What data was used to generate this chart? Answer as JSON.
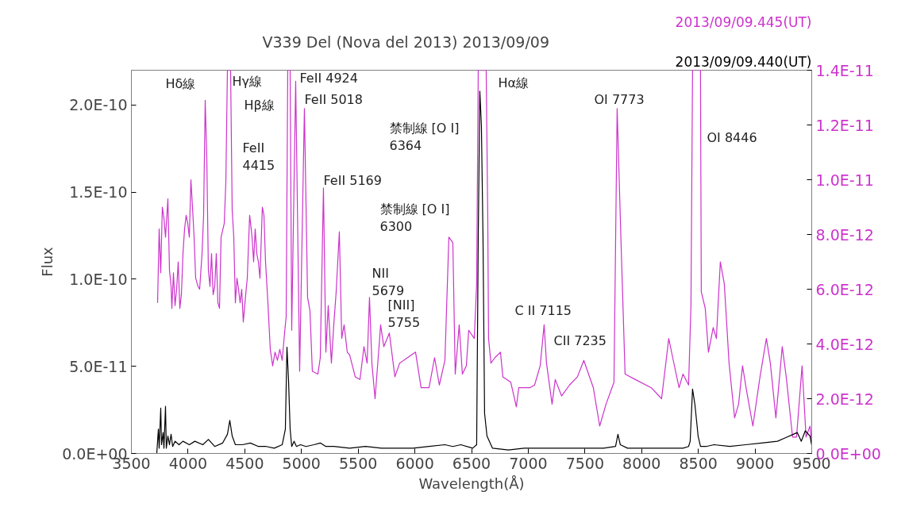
{
  "chart_data": {
    "type": "line",
    "title": "V339 Del (Nova del 2013)    2013/09/09",
    "xlabel": "Wavelength(Å)",
    "ylabel": "Flux",
    "xlim": [
      3500,
      9500
    ],
    "xticks": [
      3500,
      4000,
      4500,
      5000,
      5500,
      6000,
      6500,
      7000,
      7500,
      8000,
      8500,
      9000,
      9500
    ],
    "ylim": [
      0,
      2.2e-10
    ],
    "yticks": [
      {
        "value": 0,
        "label": "0.0E+00"
      },
      {
        "value": 5e-11,
        "label": "5.0E-11"
      },
      {
        "value": 1e-10,
        "label": "1.0E-10"
      },
      {
        "value": 1.5e-10,
        "label": "1.5E-10"
      },
      {
        "value": 2e-10,
        "label": "2.0E-10"
      }
    ],
    "y2lim": [
      0,
      1.4e-11
    ],
    "y2ticks": [
      {
        "value": 0,
        "label": "0.0E+00"
      },
      {
        "value": 2e-12,
        "label": "2.0E-12"
      },
      {
        "value": 4e-12,
        "label": "4.0E-12"
      },
      {
        "value": 6e-12,
        "label": "6.0E-12"
      },
      {
        "value": 8e-12,
        "label": "8.0E-12"
      },
      {
        "value": 1e-11,
        "label": "1.0E-11"
      },
      {
        "value": 1.2e-11,
        "label": "1.2E-11"
      },
      {
        "value": 1.4e-11,
        "label": "1.4E-11"
      }
    ],
    "grid": false,
    "marker": "none",
    "line_style": "solid",
    "series": [
      {
        "name": "2013/09/09.445(UT)",
        "color": "#cc33cc",
        "axis": "y2",
        "x": [
          3731,
          3745,
          3759,
          3773,
          3787,
          3801,
          3822,
          3836,
          3850,
          3857,
          3871,
          3885,
          3899,
          3913,
          3927,
          3941,
          3955,
          3969,
          3983,
          3997,
          4011,
          4025,
          4039,
          4053,
          4067,
          4088,
          4102,
          4123,
          4137,
          4144,
          4151,
          4165,
          4179,
          4193,
          4207,
          4221,
          4235,
          4249,
          4263,
          4277,
          4291,
          4319,
          4333,
          4347,
          4375,
          4389,
          4403,
          4417,
          4431,
          4445,
          4459,
          4473,
          4487,
          4508,
          4522,
          4543,
          4557,
          4564,
          4578,
          4592,
          4606,
          4620,
          4634,
          4655,
          4669,
          4683,
          4704,
          4725,
          4746,
          4767,
          4788,
          4809,
          4830,
          4851,
          4865,
          4879,
          4900,
          4914,
          4949,
          4984,
          5026,
          5054,
          5075,
          5096,
          5145,
          5166,
          5194,
          5215,
          5236,
          5264,
          5285,
          5306,
          5334,
          5355,
          5376,
          5404,
          5425,
          5474,
          5516,
          5551,
          5579,
          5600,
          5621,
          5649,
          5684,
          5698,
          5726,
          5775,
          5824,
          5866,
          5936,
          6006,
          6055,
          6125,
          6174,
          6216,
          6265,
          6300,
          6335,
          6356,
          6391,
          6419,
          6454,
          6475,
          6524,
          6545,
          6559,
          6629,
          6643,
          6650,
          6671,
          6706,
          6755,
          6776,
          6846,
          6895,
          6916,
          7014,
          7056,
          7105,
          7140,
          7161,
          7210,
          7238,
          7294,
          7364,
          7434,
          7490,
          7574,
          7630,
          7686,
          7756,
          7784,
          7819,
          7854,
          7945,
          8085,
          8176,
          8239,
          8274,
          8330,
          8365,
          8414,
          8435,
          8449,
          8519,
          8526,
          8561,
          8589,
          8631,
          8659,
          8694,
          8729,
          8771,
          8820,
          8855,
          8890,
          8925,
          8981,
          9044,
          9100,
          9135,
          9184,
          9240,
          9275,
          9331,
          9366,
          9415,
          9450,
          9485,
          9499
        ],
        "values": [
          5.5e-12,
          8.2e-12,
          6.6e-12,
          9e-12,
          8.6e-12,
          7.9e-12,
          9.3e-12,
          6.7e-12,
          6.1e-12,
          5.3e-12,
          6.6e-12,
          5.4e-12,
          6e-12,
          7e-12,
          5.3e-12,
          5.8e-12,
          7.3e-12,
          8.2e-12,
          8.7e-12,
          8.4e-12,
          7.9e-12,
          1e-11,
          9e-12,
          7.9e-12,
          6.4e-12,
          6.1e-12,
          6e-12,
          7.3e-12,
          8.7e-12,
          1.08e-11,
          1.29e-11,
          1.08e-11,
          6.7e-12,
          6.1e-12,
          7.3e-12,
          5.8e-12,
          6.1e-12,
          7.3e-12,
          5.5e-12,
          5.3e-12,
          7.9e-12,
          8.4e-12,
          9.9e-12,
          1.4e-11,
          1.4e-11,
          8.9e-12,
          7.9e-12,
          5.5e-12,
          6.4e-12,
          6e-12,
          5.5e-12,
          6e-12,
          4.8e-12,
          5.8e-12,
          6.4e-12,
          8.7e-12,
          8.2e-12,
          7.9e-12,
          7e-12,
          8.2e-12,
          7.3e-12,
          7e-12,
          6.4e-12,
          9e-12,
          8.7e-12,
          7e-12,
          5.5e-12,
          3.8e-12,
          3.2e-12,
          3.7e-12,
          3.4e-12,
          3.8e-12,
          3.4e-12,
          4.4e-12,
          5e-12,
          1.4e-11,
          1.4e-11,
          4.5e-12,
          1.36e-11,
          3e-12,
          1.26e-11,
          5.7e-12,
          5.2e-12,
          3e-12,
          2.9e-12,
          3.5e-12,
          9.7e-12,
          3.7e-12,
          5.4e-12,
          3.3e-12,
          4.7e-12,
          5.9e-12,
          8.1e-12,
          4.2e-12,
          4.7e-12,
          3.7e-12,
          3.6e-12,
          2.8e-12,
          2.7e-12,
          3.9e-12,
          3.3e-12,
          5.7e-12,
          3.3e-12,
          2e-12,
          3.9e-12,
          4.7e-12,
          3.9e-12,
          4.4e-12,
          2.8e-12,
          3.3e-12,
          3.5e-12,
          3.7e-12,
          2.4e-12,
          2.4e-12,
          3.5e-12,
          2.5e-12,
          3.4e-12,
          7.9e-12,
          7.7e-12,
          2.9e-12,
          4.7e-12,
          2.9e-12,
          3.2e-12,
          4.5e-12,
          4.2e-12,
          6.2e-12,
          1.4e-11,
          1.4e-11,
          8.6e-12,
          4.2e-12,
          3.3e-12,
          3.5e-12,
          3.7e-12,
          2.8e-12,
          2.6e-12,
          1.7e-12,
          2.4e-12,
          2.4e-12,
          2.5e-12,
          3.2e-12,
          4.7e-12,
          3.3e-12,
          1.8e-12,
          2.7e-12,
          2.1e-12,
          2.5e-12,
          2.8e-12,
          3.4e-12,
          2.4e-12,
          1e-12,
          1.8e-12,
          2.6e-12,
          1.26e-11,
          7.6e-12,
          2.9e-12,
          2.7e-12,
          2.4e-12,
          2e-12,
          4.2e-12,
          3.5e-12,
          2.4e-12,
          2.9e-12,
          2.5e-12,
          5.4e-12,
          1.4e-11,
          1.4e-11,
          5.9e-12,
          5.3e-12,
          3.7e-12,
          4.6e-12,
          4.2e-12,
          7e-12,
          6.2e-12,
          3.3e-12,
          1.3e-12,
          1.8e-12,
          3.2e-12,
          2.3e-12,
          1e-12,
          2.8e-12,
          4.2e-12,
          3.3e-12,
          1.3e-12,
          3.9e-12,
          2.8e-12,
          6e-13,
          6e-13,
          3.2e-12,
          6e-13,
          1e-12,
          4e-13
        ]
      },
      {
        "name": "2013/09/09.440(UT)",
        "color": "#000000",
        "x": [
          3724,
          3738,
          3745,
          3759,
          3766,
          3780,
          3787,
          3801,
          3808,
          3822,
          3836,
          3850,
          3864,
          3885,
          3920,
          3955,
          4011,
          4060,
          4130,
          4179,
          4235,
          4305,
          4347,
          4368,
          4389,
          4417,
          4480,
          4550,
          4620,
          4690,
          4760,
          4830,
          4858,
          4872,
          4886,
          4900,
          4914,
          4935,
          4956,
          4991,
          5040,
          5110,
          5166,
          5215,
          5285,
          5425,
          5565,
          5705,
          5845,
          5985,
          6125,
          6265,
          6335,
          6405,
          6510,
          6545,
          6559,
          6573,
          6587,
          6601,
          6615,
          6636,
          6685,
          6825,
          6965,
          7105,
          7245,
          7385,
          7525,
          7665,
          7770,
          7791,
          7812,
          7875,
          8015,
          8225,
          8365,
          8414,
          8428,
          8449,
          8470,
          8498,
          8519,
          8568,
          8638,
          8778,
          8918,
          9058,
          9198,
          9268,
          9338,
          9373,
          9408,
          9443,
          9485,
          9499
        ],
        "values": [
          0,
          1.4e-11,
          3e-12,
          2.6e-11,
          5e-12,
          1.2e-11,
          3e-12,
          2.7e-11,
          3e-12,
          1e-11,
          5e-12,
          1.1e-11,
          4e-12,
          7e-12,
          5e-12,
          7e-12,
          5e-12,
          7e-12,
          5e-12,
          8e-12,
          4e-12,
          6e-12,
          1.1e-11,
          1.9e-11,
          1e-11,
          5e-12,
          5e-12,
          6e-12,
          4e-12,
          4e-12,
          3e-12,
          5e-12,
          1.4e-11,
          6.1e-11,
          4.2e-11,
          1.4e-11,
          4e-12,
          7e-12,
          4e-12,
          5e-12,
          4e-12,
          5e-12,
          6e-12,
          4e-12,
          4e-12,
          3e-12,
          4e-12,
          3e-12,
          3e-12,
          3e-12,
          4e-12,
          5e-12,
          4e-12,
          5e-12,
          3e-12,
          5e-12,
          1.24e-10,
          2.08e-10,
          1.88e-10,
          1.24e-10,
          2.3e-11,
          1e-11,
          3e-12,
          2e-12,
          3e-12,
          3e-12,
          3e-12,
          3e-12,
          3e-12,
          3e-12,
          4e-12,
          1.1e-11,
          5e-12,
          3e-12,
          3e-12,
          3e-12,
          3e-12,
          4e-12,
          7e-12,
          3.7e-11,
          2.8e-11,
          1e-11,
          4e-12,
          4e-12,
          5e-12,
          4e-12,
          5e-12,
          6e-12,
          7e-12,
          9e-12,
          1.1e-11,
          1.2e-11,
          7e-12,
          1.3e-11,
          1e-11,
          5e-12
        ]
      }
    ],
    "annotations": [
      "Hδ線",
      "Hγ線",
      "Hβ線",
      "FeII 4924",
      "FeII 5018",
      "FeII\n4415",
      "FeII 5169",
      "禁制線 [O I]\n6364",
      "禁制線 [O I]\n6300",
      "NII\n5679",
      "[NII]\n5755",
      "Hα線",
      "C II  7115",
      "CII 7235",
      "OI 7773",
      "OI 8446"
    ]
  }
}
